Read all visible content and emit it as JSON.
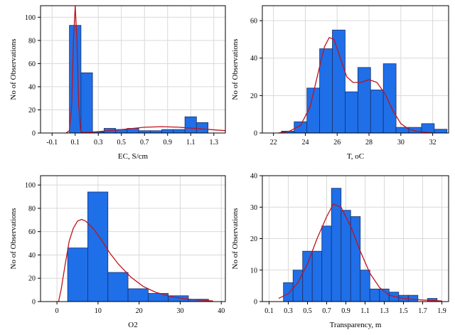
{
  "colors": {
    "bar_fill": "#1f6fe8",
    "bar_stroke": "#1a2f6b",
    "curve": "#c0141c",
    "grid": "#d9d9d9"
  },
  "chart_data": [
    {
      "type": "bar",
      "subtype": "histogram",
      "xlabel": "EC, S/cm",
      "ylabel": "No of Observations",
      "xlim": [
        -0.2,
        1.4
      ],
      "ylim": [
        0,
        110
      ],
      "xticks": [
        -0.1,
        0.1,
        0.3,
        0.5,
        0.7,
        0.9,
        1.1,
        1.3
      ],
      "xtick_labels": [
        "-0.1",
        "0.1",
        "0.3",
        "0.5",
        "0.7",
        "0.9",
        "1.1",
        "1.3"
      ],
      "yticks": [
        0,
        20,
        40,
        60,
        80,
        100
      ],
      "bins": [
        [
          0.05,
          0.15,
          93
        ],
        [
          0.15,
          0.25,
          52
        ],
        [
          0.25,
          0.35,
          1
        ],
        [
          0.35,
          0.45,
          4
        ],
        [
          0.45,
          0.55,
          3
        ],
        [
          0.55,
          0.65,
          4
        ],
        [
          0.65,
          0.75,
          2
        ],
        [
          0.75,
          0.85,
          2
        ],
        [
          0.85,
          0.95,
          3
        ],
        [
          0.95,
          1.05,
          3
        ],
        [
          1.05,
          1.15,
          14
        ],
        [
          1.15,
          1.25,
          9
        ]
      ],
      "curve": [
        [
          0.02,
          0
        ],
        [
          0.05,
          2
        ],
        [
          0.07,
          25
        ],
        [
          0.085,
          80
        ],
        [
          0.1,
          110
        ],
        [
          0.115,
          80
        ],
        [
          0.13,
          25
        ],
        [
          0.145,
          3
        ],
        [
          0.16,
          0.5
        ],
        [
          0.2,
          0.5
        ],
        [
          0.3,
          1.2
        ],
        [
          0.5,
          3
        ],
        [
          0.7,
          5
        ],
        [
          0.85,
          5.5
        ],
        [
          1.0,
          5
        ],
        [
          1.2,
          3.5
        ],
        [
          1.4,
          2
        ]
      ],
      "grid": true
    },
    {
      "type": "bar",
      "subtype": "histogram",
      "xlabel": "T, oC",
      "ylabel": "No of Observations",
      "xlim": [
        21.3,
        33
      ],
      "ylim": [
        0,
        68
      ],
      "xticks": [
        22,
        24,
        26,
        28,
        30,
        32
      ],
      "xtick_labels": [
        "22",
        "24",
        "26",
        "28",
        "30",
        "32"
      ],
      "yticks": [
        0,
        20,
        40,
        60
      ],
      "bins": [
        [
          22.5,
          23.3,
          1
        ],
        [
          23.3,
          24.1,
          6
        ],
        [
          24.1,
          24.9,
          24
        ],
        [
          24.9,
          25.7,
          45
        ],
        [
          25.7,
          26.5,
          55
        ],
        [
          26.5,
          27.3,
          22
        ],
        [
          27.3,
          28.1,
          35
        ],
        [
          28.1,
          28.9,
          23
        ],
        [
          28.9,
          29.7,
          37
        ],
        [
          29.7,
          30.5,
          3
        ],
        [
          30.5,
          31.3,
          3
        ],
        [
          31.3,
          32.1,
          5
        ],
        [
          32.1,
          32.9,
          2
        ]
      ],
      "curve": [
        [
          22.3,
          0
        ],
        [
          23,
          1
        ],
        [
          23.7,
          4
        ],
        [
          24.3,
          14
        ],
        [
          24.8,
          32
        ],
        [
          25.2,
          46
        ],
        [
          25.5,
          51
        ],
        [
          25.8,
          50
        ],
        [
          26.2,
          40
        ],
        [
          26.6,
          30
        ],
        [
          27,
          27
        ],
        [
          27.5,
          27
        ],
        [
          28,
          28.5
        ],
        [
          28.5,
          27
        ],
        [
          29,
          21
        ],
        [
          29.5,
          12
        ],
        [
          30,
          5
        ],
        [
          30.5,
          2
        ],
        [
          31,
          1
        ],
        [
          32,
          0
        ]
      ],
      "grid": true
    },
    {
      "type": "bar",
      "subtype": "histogram",
      "xlabel": "O2",
      "ylabel": "No of Observations",
      "xlim": [
        -4,
        41
      ],
      "ylim": [
        0,
        108
      ],
      "xticks": [
        0,
        10,
        20,
        30,
        40
      ],
      "xtick_labels": [
        "0",
        "10",
        "20",
        "30",
        "40"
      ],
      "yticks": [
        0,
        20,
        40,
        60,
        80,
        100
      ],
      "bins": [
        [
          2.6,
          7.5,
          46
        ],
        [
          7.5,
          12.4,
          94
        ],
        [
          12.4,
          17.3,
          25
        ],
        [
          17.3,
          22.2,
          11
        ],
        [
          22.2,
          27.1,
          7
        ],
        [
          27.1,
          32,
          5
        ],
        [
          32,
          36.9,
          2
        ]
      ],
      "curve": [
        [
          0.4,
          0
        ],
        [
          1,
          10
        ],
        [
          2,
          32
        ],
        [
          3,
          52
        ],
        [
          4,
          63
        ],
        [
          5,
          69
        ],
        [
          6,
          70.5
        ],
        [
          7,
          69
        ],
        [
          9,
          62
        ],
        [
          11,
          52
        ],
        [
          13,
          41
        ],
        [
          15,
          32
        ],
        [
          18,
          21
        ],
        [
          21,
          13
        ],
        [
          24,
          8
        ],
        [
          28,
          4
        ],
        [
          32,
          2
        ],
        [
          36,
          1
        ],
        [
          38,
          0.5
        ]
      ],
      "grid": true
    },
    {
      "type": "bar",
      "subtype": "histogram",
      "xlabel": "Transparency, m",
      "ylabel": "No of Observations",
      "xlim": [
        0.03,
        1.97
      ],
      "ylim": [
        0,
        40
      ],
      "xticks": [
        0.1,
        0.3,
        0.5,
        0.7,
        0.9,
        1.1,
        1.3,
        1.5,
        1.7,
        1.9
      ],
      "xtick_labels": [
        "0.1",
        "0.3",
        "0.5",
        "0.7",
        "0.9",
        "1.1",
        "1.3",
        "1.5",
        "1.7",
        "1.9"
      ],
      "yticks": [
        0,
        10,
        20,
        30,
        40
      ],
      "bins": [
        [
          0.25,
          0.35,
          6
        ],
        [
          0.35,
          0.45,
          10
        ],
        [
          0.45,
          0.55,
          16
        ],
        [
          0.55,
          0.65,
          16
        ],
        [
          0.65,
          0.75,
          24
        ],
        [
          0.75,
          0.85,
          36
        ],
        [
          0.85,
          0.95,
          29
        ],
        [
          0.95,
          1.05,
          27
        ],
        [
          1.05,
          1.15,
          10
        ],
        [
          1.15,
          1.25,
          4
        ],
        [
          1.25,
          1.35,
          4
        ],
        [
          1.35,
          1.45,
          3
        ],
        [
          1.45,
          1.55,
          2
        ],
        [
          1.55,
          1.65,
          2
        ],
        [
          1.65,
          1.75,
          0
        ],
        [
          1.75,
          1.85,
          1
        ]
      ],
      "curve": [
        [
          0.2,
          1
        ],
        [
          0.3,
          2.5
        ],
        [
          0.4,
          6
        ],
        [
          0.5,
          12
        ],
        [
          0.6,
          20
        ],
        [
          0.7,
          27
        ],
        [
          0.77,
          31
        ],
        [
          0.85,
          30
        ],
        [
          0.95,
          24
        ],
        [
          1.05,
          16
        ],
        [
          1.15,
          9
        ],
        [
          1.25,
          4.5
        ],
        [
          1.35,
          2
        ],
        [
          1.5,
          1
        ],
        [
          1.7,
          0.5
        ],
        [
          1.9,
          0.2
        ]
      ],
      "grid": true
    }
  ]
}
